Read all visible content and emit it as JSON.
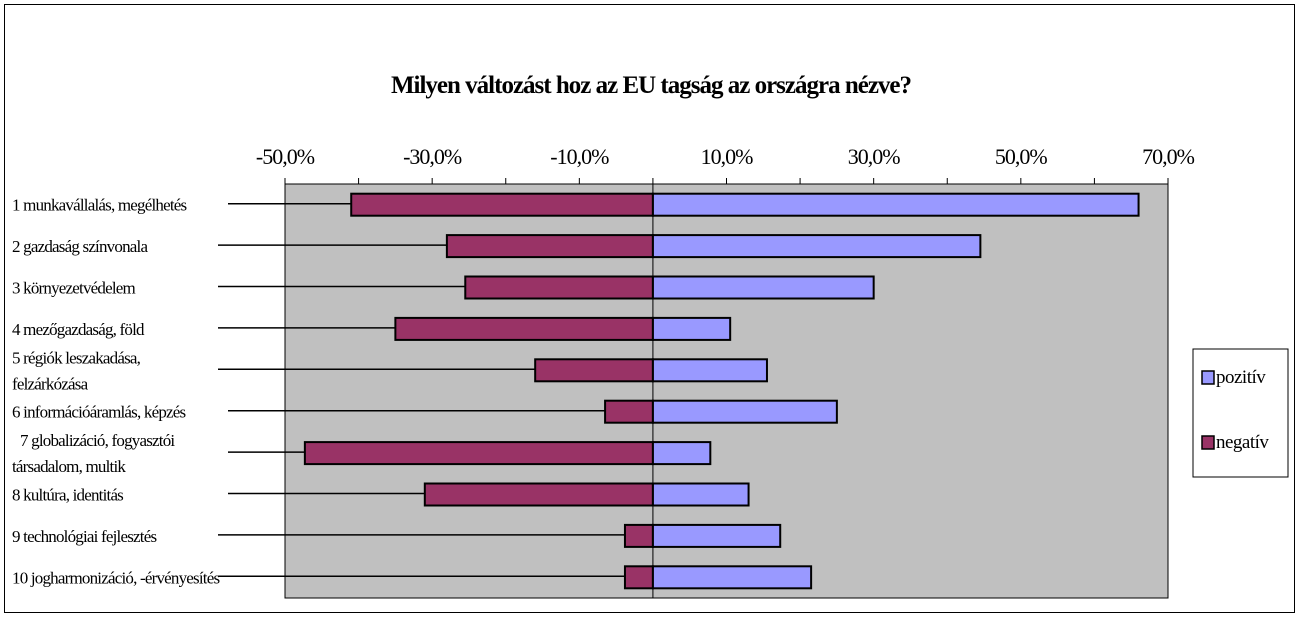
{
  "chart_data": {
    "type": "bar",
    "orientation": "horizontal",
    "stacked": true,
    "title": "Milyen változást hoz az EU tagság az országra nézve?",
    "xlabel": "",
    "ylabel": "",
    "xlim": [
      -50,
      70
    ],
    "x_ticks": [
      -50,
      -30,
      -10,
      10,
      30,
      50,
      70
    ],
    "x_tick_labels": [
      "-50,0%",
      "-30,0%",
      "-10,0%",
      "10,0%",
      "30,0%",
      "50,0%",
      "70,0%"
    ],
    "categories": [
      "1 munkavállalás, megélhetés",
      "2 gazdaság színvonala",
      "3 környezetvédelem",
      "4 mezőgazdaság, föld",
      "5 régiók leszakadása, felzárkózása",
      "6 információáramlás, képzés",
      "7 globalizáció, fogyasztói társadalom, multik",
      "8 kultúra, identitás",
      "9 technológiai fejlesztés",
      "10 jogharmonizáció, -érvényesítés"
    ],
    "category_label_lines": [
      [
        "1 munkavállalás, megélhetés"
      ],
      [
        "2 gazdaság színvonala"
      ],
      [
        "3 környezetvédelem"
      ],
      [
        "4 mezőgazdaság, föld"
      ],
      [
        "5 régiók leszakadása,",
        "felzárkózása"
      ],
      [
        "6 információáramlás, képzés"
      ],
      [
        "7 globalizáció, fogyasztói",
        "társadalom, multik"
      ],
      [
        "8 kultúra, identitás"
      ],
      [
        "9 technológiai fejlesztés"
      ],
      [
        "10 jogharmonizáció, -érvényesítés"
      ]
    ],
    "series": [
      {
        "name": "pozitív",
        "color": "#9999ff",
        "values": [
          66.0,
          44.5,
          30.0,
          10.5,
          15.5,
          25.0,
          7.8,
          13.0,
          17.3,
          21.5
        ]
      },
      {
        "name": "negatív",
        "color": "#993366",
        "values": [
          -41.0,
          -28.0,
          -25.5,
          -35.0,
          -16.0,
          -6.5,
          -47.3,
          -31.0,
          -3.8,
          -3.8
        ]
      }
    ],
    "plot_background": "#c0c0c0",
    "grid": false,
    "legend_position": "right"
  }
}
